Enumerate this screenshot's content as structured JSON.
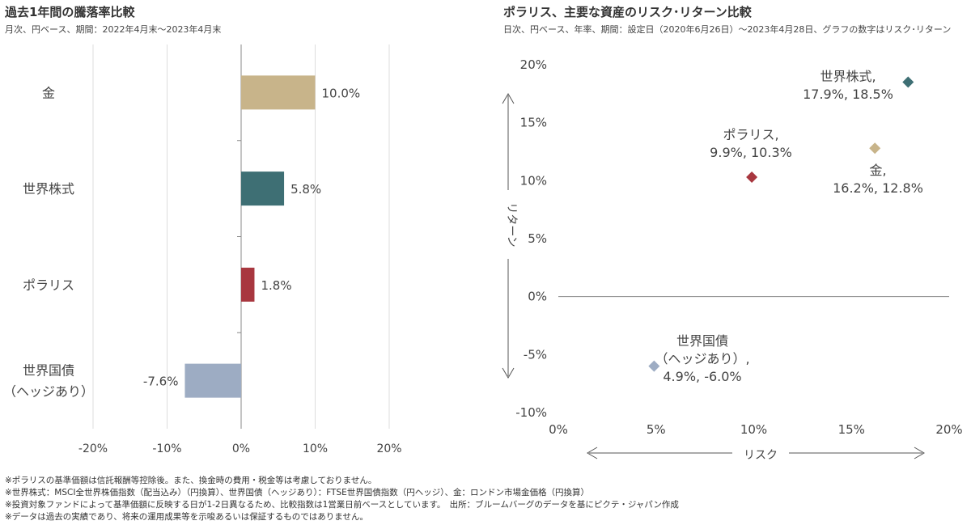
{
  "chart_data": [
    {
      "type": "bar",
      "orientation": "horizontal",
      "title": "過去1年間の騰落率比較",
      "subtitle": "月次、円ベース、期間：2022年4月末～2023年4月末",
      "categories": [
        "金",
        "世界株式",
        "ポラリス",
        "世界国債（ヘッジあり）"
      ],
      "category_lines": [
        [
          "金"
        ],
        [
          "世界株式"
        ],
        [
          "ポラリス"
        ],
        [
          "世界国債",
          "（ヘッジあり）"
        ]
      ],
      "values": [
        10.0,
        5.8,
        1.8,
        -7.6
      ],
      "data_labels": [
        "10.0%",
        "5.8%",
        "1.8%",
        "-7.6%"
      ],
      "colors": [
        "#c8b48a",
        "#3e6f74",
        "#a8373f",
        "#9dacc3"
      ],
      "xlim": [
        -20,
        20
      ],
      "xticks": [
        -20,
        -10,
        0,
        10,
        20
      ],
      "xtick_labels": [
        "-20%",
        "-10%",
        "0%",
        "10%",
        "20%"
      ],
      "grid": true
    },
    {
      "type": "scatter",
      "title": "ポラリス、主要な資産のリスク･リターン比較",
      "subtitle": "日次、円ベース、年率、期間：設定日（2020年6月26日）～2023年4月28日、グラフの数字はリスク･リターン",
      "xlabel": "リスク",
      "ylabel": "リターン",
      "xlim": [
        0,
        20
      ],
      "ylim": [
        -10,
        20
      ],
      "xticks": [
        0,
        5,
        10,
        15,
        20
      ],
      "xtick_labels": [
        "0%",
        "5%",
        "10%",
        "15%",
        "20%"
      ],
      "yticks": [
        -10,
        -5,
        0,
        5,
        10,
        15,
        20
      ],
      "ytick_labels": [
        "-10%",
        "-5%",
        "0%",
        "5%",
        "10%",
        "15%",
        "20%"
      ],
      "points": [
        {
          "label_lines": [
            "世界株式,",
            "17.9%, 18.5%"
          ],
          "x": 17.9,
          "y": 18.5,
          "color": "#3e6f74"
        },
        {
          "label_lines": [
            "ポラリス,",
            "9.9%, 10.3%"
          ],
          "x": 9.9,
          "y": 10.3,
          "color": "#a8373f"
        },
        {
          "label_lines": [
            "金,",
            "16.2%, 12.8%"
          ],
          "x": 16.2,
          "y": 12.8,
          "color": "#c8b48a"
        },
        {
          "label_lines": [
            "世界国債",
            "（ヘッジあり）,",
            "4.9%, -6.0%"
          ],
          "x": 4.9,
          "y": -6.0,
          "color": "#9dacc3"
        }
      ]
    }
  ],
  "notes": [
    "※ポラリスの基準価額は信託報酬等控除後。また、換金時の費用・税金等は考慮しておりません。",
    "※世界株式：MSCI全世界株価指数（配当込み）（円換算）、世界国債（ヘッジあり）：FTSE世界国債指数（円ヘッジ）、金：ロンドン市場金価格（円換算）",
    "※投資対象ファンドによって基準価額に反映する日が1-2日異なるため、比較指数は1営業日前ベースとしています。　出所：ブルームバーグのデータを基にピクテ・ジャパン作成",
    "※データは過去の実績であり、将来の運用成果等を示唆あるいは保証するものではありません。"
  ]
}
